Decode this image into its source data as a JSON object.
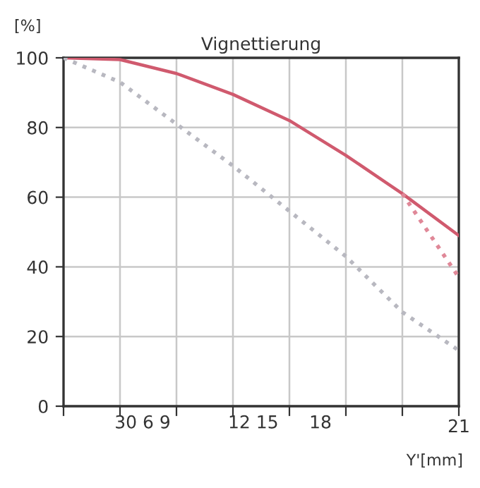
{
  "chart_data": {
    "type": "line",
    "title": "Vignettierung",
    "xlabel": "Y'[mm]",
    "ylabel": "[%]",
    "categories": [
      null,
      null,
      null,
      null,
      null,
      null,
      null,
      "21"
    ],
    "series": [
      {
        "color": "#d05a6e",
        "line_style": "solid",
        "values": [
          100,
          99.5,
          95.5,
          89.5,
          82,
          72,
          61,
          49
        ]
      },
      {
        "color": "#b8b8c0",
        "line_style": "dotted",
        "values": [
          100,
          93,
          81,
          69,
          56,
          43,
          27,
          16
        ]
      },
      {
        "color": "#e08898",
        "line_style": "dotted",
        "values": [
          null,
          null,
          null,
          null,
          null,
          null,
          61,
          37
        ]
      }
    ],
    "ylim": [
      0,
      100
    ],
    "yticks": [
      0,
      20,
      40,
      60,
      80,
      100
    ],
    "annotations": [
      "30 6 9",
      "12 15",
      "18"
    ],
    "grid": true,
    "marker": "none"
  }
}
